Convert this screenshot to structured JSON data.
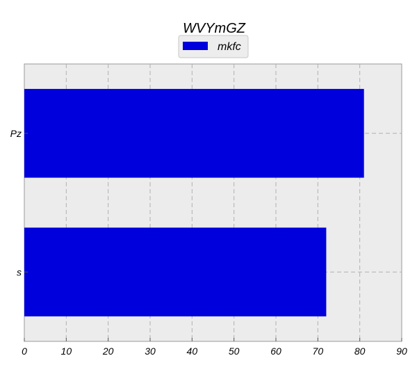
{
  "chart_data": {
    "type": "bar",
    "orientation": "horizontal",
    "title": "WVYmGZ",
    "categories": [
      "Pz",
      "s"
    ],
    "series": [
      {
        "name": "mkfc",
        "values": [
          81,
          72
        ],
        "color": "#0000dd"
      }
    ],
    "xlim": [
      0,
      90
    ],
    "xticks": [
      0,
      10,
      20,
      30,
      40,
      50,
      60,
      70,
      80,
      90
    ],
    "xlabel": "",
    "ylabel": "",
    "grid": true,
    "legend_position": "top-center",
    "background_color": "#ececec"
  }
}
